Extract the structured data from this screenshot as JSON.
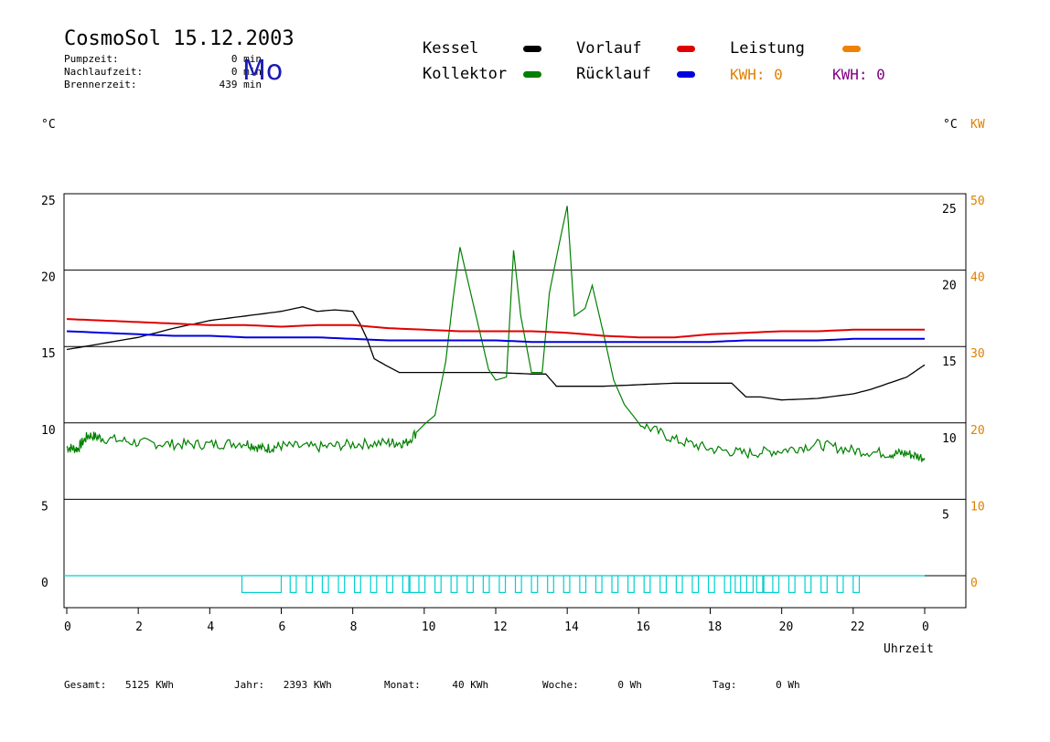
{
  "header": {
    "title": "CosmoSol 15.12.2003",
    "weekday": "Mo",
    "stats": [
      {
        "label": "Pumpzeit:",
        "value": "0 min"
      },
      {
        "label": "Nachlaufzeit:",
        "value": "0 min"
      },
      {
        "label": "Brennerzeit:",
        "value": "439 min"
      }
    ]
  },
  "legend": [
    {
      "name": "Kessel",
      "color": "#000000"
    },
    {
      "name": "Vorlauf",
      "color": "#e00000"
    },
    {
      "name": "Leistung",
      "color": "#f08000"
    },
    {
      "name": "Kollektor",
      "color": "#008000"
    },
    {
      "name": "Rücklauf",
      "color": "#0000e0"
    }
  ],
  "kwh": [
    {
      "text": "KWH: 0",
      "color": "#e08000"
    },
    {
      "text": "KWH: 0",
      "color": "#800080"
    }
  ],
  "axes": {
    "left_unit": "°C",
    "right_unit_c": "°C",
    "right_unit_kw": "KW",
    "left_ticks": [
      "25",
      "20",
      "15",
      "10",
      "5",
      "0"
    ],
    "right_inner_ticks": [
      "25",
      "20",
      "15",
      "10",
      "5"
    ],
    "right_outer_ticks": [
      "50",
      "40",
      "30",
      "20",
      "10",
      "0"
    ],
    "x_ticks": [
      "0",
      "2",
      "4",
      "6",
      "8",
      "10",
      "12",
      "14",
      "16",
      "18",
      "20",
      "22",
      "0"
    ],
    "x_label": "Uhrzeit",
    "x_range": [
      0,
      24
    ],
    "y_range": [
      -1.5,
      25.5
    ]
  },
  "footer": [
    {
      "label": "Gesamt:",
      "value": "5125 KWh"
    },
    {
      "label": "Jahr:",
      "value": "2393 KWh"
    },
    {
      "label": "Monat:",
      "value": "40 KWh"
    },
    {
      "label": "Woche:",
      "value": "0 Wh"
    },
    {
      "label": "Tag:",
      "value": "0 Wh"
    }
  ],
  "chart_data": {
    "type": "line",
    "x_unit": "h",
    "series": [
      {
        "name": "Kessel",
        "color": "#000000",
        "x": [
          0,
          1,
          2,
          3,
          4,
          5,
          6,
          6.6,
          7,
          7.5,
          8,
          8.2,
          8.4,
          8.6,
          8.9,
          9.3,
          10,
          11,
          12,
          13,
          13.4,
          13.7,
          14,
          15,
          16,
          17,
          18,
          18.6,
          19,
          19.4,
          20,
          21,
          22,
          22.5,
          23,
          23.5,
          24
        ],
        "y": [
          14.8,
          15.2,
          15.6,
          16.2,
          16.7,
          17.0,
          17.3,
          17.6,
          17.3,
          17.4,
          17.3,
          16.5,
          15.5,
          14.2,
          13.8,
          13.3,
          13.3,
          13.3,
          13.3,
          13.2,
          13.2,
          12.4,
          12.4,
          12.4,
          12.5,
          12.6,
          12.6,
          12.6,
          11.7,
          11.7,
          11.5,
          11.6,
          11.9,
          12.2,
          12.6,
          13.0,
          13.8
        ]
      },
      {
        "name": "Kollektor",
        "color": "#008000",
        "x": [
          0,
          0.3,
          0.6,
          1,
          2,
          3,
          4,
          5,
          5.5,
          6,
          7,
          8,
          9,
          9.5,
          10,
          10.3,
          10.6,
          10.8,
          11,
          11.2,
          11.5,
          11.8,
          12,
          12.3,
          12.5,
          12.7,
          13,
          13.3,
          13.5,
          13.8,
          14,
          14.2,
          14.5,
          14.7,
          15,
          15.3,
          15.6,
          16,
          17,
          18,
          19,
          20,
          21,
          22,
          23,
          23.5,
          24
        ],
        "y": [
          8.4,
          8.3,
          9.2,
          9.0,
          8.7,
          8.6,
          8.6,
          8.7,
          8.3,
          8.5,
          8.4,
          8.6,
          8.7,
          8.7,
          9.9,
          10.5,
          14.0,
          18.0,
          21.5,
          19.5,
          16.5,
          13.5,
          12.8,
          13.0,
          21.3,
          17.0,
          13.3,
          13.3,
          18.5,
          22.0,
          24.2,
          17.0,
          17.5,
          19.0,
          16.0,
          12.8,
          11.2,
          10.0,
          8.9,
          8.3,
          8.0,
          8.2,
          8.6,
          8.2,
          8.0,
          8.0,
          7.7
        ]
      },
      {
        "name": "Vorlauf",
        "color": "#e00000",
        "x": [
          0,
          1,
          2,
          3,
          4,
          5,
          6,
          7,
          8,
          9,
          10,
          11,
          12,
          13,
          14,
          15,
          16,
          17,
          18,
          19,
          20,
          21,
          22,
          23,
          24
        ],
        "y": [
          16.8,
          16.7,
          16.6,
          16.5,
          16.4,
          16.4,
          16.3,
          16.4,
          16.4,
          16.2,
          16.1,
          16.0,
          16.0,
          16.0,
          15.9,
          15.7,
          15.6,
          15.6,
          15.8,
          15.9,
          16.0,
          16.0,
          16.1,
          16.1,
          16.1
        ]
      },
      {
        "name": "Rücklauf",
        "color": "#0000e0",
        "x": [
          0,
          1,
          2,
          3,
          4,
          5,
          6,
          7,
          8,
          9,
          10,
          11,
          12,
          13,
          14,
          15,
          16,
          17,
          18,
          19,
          20,
          21,
          22,
          23,
          24
        ],
        "y": [
          16.0,
          15.9,
          15.8,
          15.7,
          15.7,
          15.6,
          15.6,
          15.6,
          15.5,
          15.4,
          15.4,
          15.4,
          15.4,
          15.3,
          15.3,
          15.3,
          15.3,
          15.3,
          15.3,
          15.4,
          15.4,
          15.4,
          15.5,
          15.5,
          15.5
        ]
      }
    ],
    "pump_pulses": {
      "name": "Pumpe",
      "color": "#00d0d0",
      "baseline": 0,
      "low": -1.1,
      "wide_blocks": [
        [
          4.9,
          6.0
        ],
        [
          9.6,
          9.9
        ],
        [
          18.7,
          19.2
        ],
        [
          19.5,
          19.8
        ]
      ],
      "pulses_start": 6.25,
      "pulses_end": 22.1,
      "pulse_period": 0.45,
      "pulse_width": 0.17
    }
  }
}
